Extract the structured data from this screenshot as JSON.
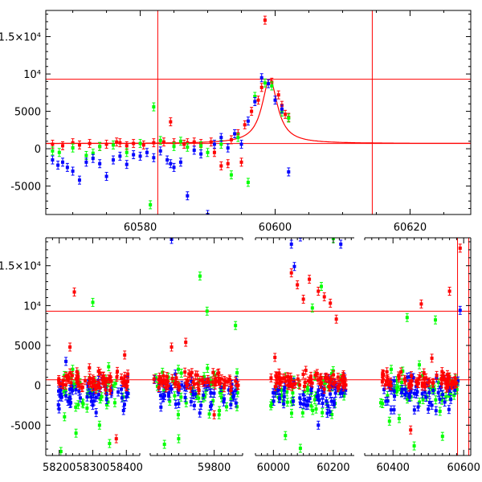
{
  "chart_data": [
    {
      "type": "scatter",
      "panel": "top",
      "title": "",
      "xlabel": "",
      "ylabel": "",
      "xlim": [
        60566,
        60629
      ],
      "ylim": [
        -8800,
        18500
      ],
      "x_ticks": [
        60580,
        60600,
        60620
      ],
      "y_ticks": [
        {
          "value": 15000,
          "label": "1.5×10⁴"
        },
        {
          "value": 10000,
          "label": "10⁴"
        },
        {
          "value": 5000,
          "label": "5000"
        },
        {
          "value": 0,
          "label": "0"
        },
        {
          "value": -5000,
          "label": "-5000"
        }
      ],
      "reference_lines": {
        "horizontal": [
          9300,
          700
        ],
        "vertical": [
          60582.6,
          60614.4
        ]
      },
      "model_curve": {
        "baseline": 700,
        "peak": 9300,
        "t0": 60599.2,
        "width": 1.4
      },
      "series": [
        {
          "name": "red",
          "color": "#ff0000",
          "points": [
            [
              60567,
              600
            ],
            [
              60568.5,
              400
            ],
            [
              60570,
              800
            ],
            [
              60571,
              500
            ],
            [
              60572.5,
              700
            ],
            [
              60574,
              300
            ],
            [
              60575,
              600
            ],
            [
              60576.5,
              900
            ],
            [
              60578,
              400
            ],
            [
              60579,
              700
            ],
            [
              60580.5,
              500
            ],
            [
              60582,
              800
            ],
            [
              60583.5,
              900
            ],
            [
              60585,
              800
            ],
            [
              60586.5,
              600
            ],
            [
              60588,
              900
            ],
            [
              60589,
              700
            ],
            [
              60590.5,
              900
            ],
            [
              60592,
              -2300
            ],
            [
              60593,
              -2000
            ],
            [
              60593.5,
              1200
            ],
            [
              60594.5,
              2000
            ],
            [
              60595.5,
              3200
            ],
            [
              60596.5,
              5000
            ],
            [
              60597.5,
              6500
            ],
            [
              60598,
              8200
            ],
            [
              60598.5,
              17200
            ],
            [
              60599.5,
              8900
            ],
            [
              60600.5,
              7200
            ],
            [
              60601,
              5800
            ],
            [
              60601.5,
              4600
            ],
            [
              60602,
              4200
            ],
            [
              60584.5,
              3600
            ],
            [
              60591,
              -500
            ],
            [
              60595,
              -1800
            ],
            [
              60587,
              800
            ],
            [
              60577,
              800
            ]
          ]
        },
        {
          "name": "green",
          "color": "#00ff00",
          "points": [
            [
              60567,
              -300
            ],
            [
              60568,
              -500
            ],
            [
              60570,
              100
            ],
            [
              60572,
              -900
            ],
            [
              60574,
              300
            ],
            [
              60576,
              500
            ],
            [
              60578,
              -500
            ],
            [
              60580,
              700
            ],
            [
              60582,
              5600
            ],
            [
              60581.5,
              -7500
            ],
            [
              60583,
              1100
            ],
            [
              60585,
              300
            ],
            [
              60587,
              200
            ],
            [
              60589,
              400
            ],
            [
              60590,
              -500
            ],
            [
              60592,
              600
            ],
            [
              60593.5,
              -3500
            ],
            [
              60594.5,
              1500
            ],
            [
              60596,
              -4500
            ],
            [
              60597,
              7000
            ],
            [
              60598.5,
              8800
            ],
            [
              60599.5,
              8400
            ],
            [
              60601,
              4900
            ],
            [
              60602,
              4100
            ],
            [
              60586,
              1000
            ],
            [
              60573,
              -600
            ]
          ]
        },
        {
          "name": "blue",
          "color": "#0000ff",
          "points": [
            [
              60567,
              -1500
            ],
            [
              60567.8,
              -2200
            ],
            [
              60568.5,
              -1800
            ],
            [
              60569.2,
              -2500
            ],
            [
              60570,
              -3000
            ],
            [
              60571,
              -4200
            ],
            [
              60572,
              -1800
            ],
            [
              60573,
              -1300
            ],
            [
              60574,
              -2000
            ],
            [
              60575,
              -3700
            ],
            [
              60576,
              -1500
            ],
            [
              60577,
              -1000
            ],
            [
              60578,
              -2100
            ],
            [
              60579,
              -800
            ],
            [
              60580,
              -1000
            ],
            [
              60581,
              -500
            ],
            [
              60582,
              -1200
            ],
            [
              60583,
              -300
            ],
            [
              60584,
              -1500
            ],
            [
              60585,
              -2500
            ],
            [
              60586,
              -1800
            ],
            [
              60587,
              -6300
            ],
            [
              60588,
              -200
            ],
            [
              60589,
              -700
            ],
            [
              60590,
              -8800
            ],
            [
              60591,
              600
            ],
            [
              60592,
              1500
            ],
            [
              60593,
              100
            ],
            [
              60594,
              2000
            ],
            [
              60595,
              600
            ],
            [
              60596,
              3700
            ],
            [
              60597,
              6300
            ],
            [
              60598,
              9500
            ],
            [
              60599,
              8700
            ],
            [
              60600,
              6500
            ],
            [
              60601,
              5300
            ],
            [
              60602,
              -3100
            ],
            [
              60584.5,
              -2000
            ]
          ]
        }
      ]
    },
    {
      "type": "scatter",
      "panel": "bottom",
      "title": "",
      "xlabel": "",
      "ylabel": "",
      "x_segments": [
        {
          "xlim": [
            58160,
            58440
          ],
          "ticks": [
            58200,
            58300,
            58400
          ]
        },
        {
          "xlim": [
            59620,
            59880
          ],
          "ticks": [
            59800
          ]
        },
        {
          "xlim": [
            59940,
            60270
          ],
          "ticks": [
            60000,
            60200
          ]
        },
        {
          "xlim": [
            60320,
            60620
          ],
          "ticks": [
            60400,
            60600
          ]
        }
      ],
      "ylim": [
        -8800,
        18500
      ],
      "y_ticks": [
        {
          "value": 15000,
          "label": "1.5×10⁴"
        },
        {
          "value": 10000,
          "label": "10⁴"
        },
        {
          "value": 5000,
          "label": "5000"
        },
        {
          "value": 0,
          "label": "0"
        },
        {
          "value": -5000,
          "label": "-5000"
        }
      ],
      "reference_lines": {
        "horizontal": [
          9300,
          700
        ],
        "vertical": [
          60582.6,
          60614.4
        ]
      },
      "data_spans": [
        [
          58195,
          58410
        ],
        [
          59630,
          59870
        ],
        [
          59990,
          60245
        ],
        [
          60365,
          60585
        ]
      ],
      "series": [
        {
          "name": "red",
          "color": "#ff0000",
          "points": [
            [
              58245,
              11700
            ],
            [
              58232,
              4800
            ],
            [
              58290,
              2200
            ],
            [
              58370,
              -6700
            ],
            [
              58395,
              3800
            ],
            [
              59720,
              5400
            ],
            [
              59800,
              -3700
            ],
            [
              59680,
              4800
            ],
            [
              60080,
              12600
            ],
            [
              60060,
              14100
            ],
            [
              60120,
              13300
            ],
            [
              60150,
              11800
            ],
            [
              60170,
              11100
            ],
            [
              60190,
              10300
            ],
            [
              60210,
              8300
            ],
            [
              60100,
              10800
            ],
            [
              60005,
              3500
            ],
            [
              60590,
              17200
            ],
            [
              60560,
              11800
            ],
            [
              60480,
              10200
            ],
            [
              60450,
              -5600
            ],
            [
              60510,
              3400
            ]
          ]
        },
        {
          "name": "green",
          "color": "#00ff00",
          "points": [
            [
              58300,
              10400
            ],
            [
              58205,
              -8300
            ],
            [
              58250,
              -6000
            ],
            [
              58350,
              -7300
            ],
            [
              58320,
              -5000
            ],
            [
              59760,
              13700
            ],
            [
              59780,
              9300
            ],
            [
              59860,
              7500
            ],
            [
              59700,
              -6700
            ],
            [
              59660,
              -7400
            ],
            [
              60130,
              9700
            ],
            [
              60160,
              12400
            ],
            [
              60200,
              18400
            ],
            [
              60040,
              -6300
            ],
            [
              60090,
              -7900
            ],
            [
              60440,
              8500
            ],
            [
              60520,
              8200
            ],
            [
              60390,
              -4500
            ],
            [
              60460,
              -7600
            ],
            [
              60540,
              -6400
            ]
          ]
        },
        {
          "name": "blue",
          "color": "#0000ff",
          "points": [
            [
              59680,
              18300
            ],
            [
              60060,
              17700
            ],
            [
              60090,
              18600
            ],
            [
              60225,
              17700
            ],
            [
              60070,
              14900
            ],
            [
              60590,
              9400
            ],
            [
              60380,
              -2000
            ],
            [
              60500,
              -3000
            ],
            [
              59700,
              -2300
            ],
            [
              60150,
              -5000
            ],
            [
              58300,
              -2500
            ],
            [
              58220,
              3000
            ],
            [
              60180,
              -3500
            ]
          ]
        }
      ]
    }
  ]
}
